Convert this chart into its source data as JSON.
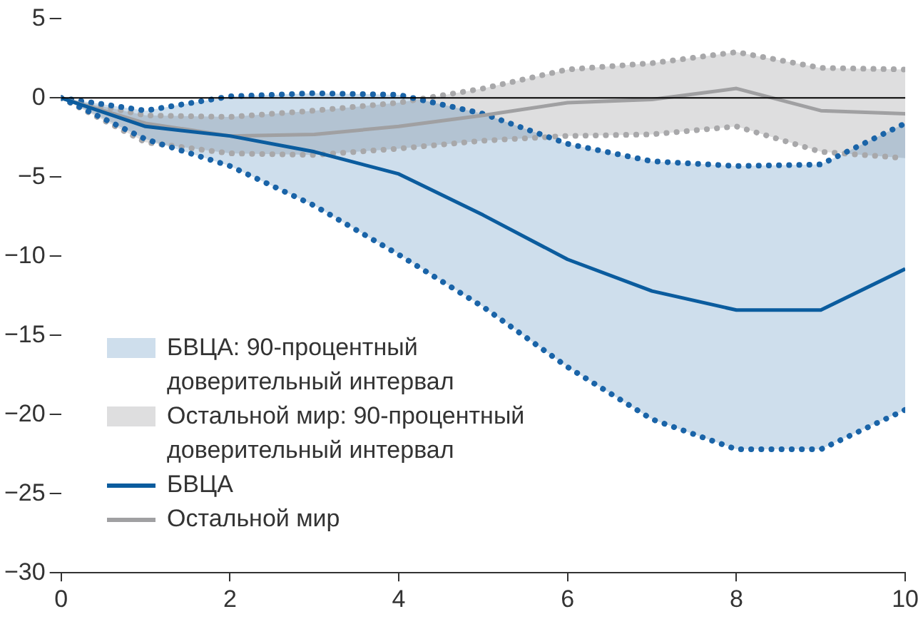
{
  "chart_data": {
    "type": "line",
    "x": [
      0,
      1,
      2,
      3,
      4,
      5,
      6,
      7,
      8,
      9,
      10
    ],
    "series": [
      {
        "name": "БВЦА",
        "color": "#0b5c9e",
        "values": [
          0,
          -1.8,
          -2.4,
          -3.4,
          -4.8,
          -7.4,
          -10.2,
          -12.2,
          -13.4,
          -13.4,
          -10.8
        ],
        "lower": [
          0,
          -2.6,
          -4.3,
          -6.8,
          -9.9,
          -13.2,
          -17.0,
          -20.3,
          -22.2,
          -22.2,
          -19.7
        ],
        "upper": [
          0,
          -0.8,
          0.1,
          0.3,
          0.2,
          -1.0,
          -2.9,
          -4.0,
          -4.3,
          -4.2,
          -1.6
        ]
      },
      {
        "name": "Остальной мир",
        "color": "#a0a0a2",
        "values": [
          0,
          -1.6,
          -2.4,
          -2.3,
          -1.8,
          -1.1,
          -0.3,
          -0.1,
          0.6,
          -0.8,
          -1.0
        ],
        "lower": [
          0,
          -2.8,
          -3.5,
          -3.6,
          -3.2,
          -2.7,
          -2.4,
          -2.3,
          -1.8,
          -3.4,
          -3.8
        ],
        "upper": [
          0,
          -1.1,
          -1.2,
          -0.8,
          -0.3,
          0.6,
          1.8,
          2.2,
          2.9,
          1.9,
          1.8
        ]
      },
      {
        "color": "#1a64a8",
        "line_style": "dotted",
        "values": [
          0,
          -2.6,
          -4.3,
          -6.8,
          -9.9,
          -13.2,
          -17.0,
          -20.3,
          -22.2,
          -22.2,
          -19.7
        ]
      },
      {
        "color": "#1a64a8",
        "line_style": "dotted",
        "values": [
          0,
          -0.8,
          0.1,
          0.3,
          0.2,
          -1.0,
          -2.9,
          -4.0,
          -4.3,
          -4.2,
          -1.6
        ]
      },
      {
        "color": "#a8a8aa",
        "line_style": "dotted",
        "values": [
          0,
          -2.8,
          -3.5,
          -3.6,
          -3.2,
          -2.7,
          -2.4,
          -2.3,
          -1.8,
          -3.4,
          -3.8
        ]
      },
      {
        "color": "#a8a8aa",
        "line_style": "dotted",
        "values": [
          0,
          -1.1,
          -1.2,
          -0.8,
          -0.3,
          0.6,
          1.8,
          2.2,
          2.9,
          1.9,
          1.8
        ]
      }
    ],
    "annotations": [
      "БВЦА: 90-процентный доверительный интервал",
      "Остальной мир: 90-процентный доверительный интервал"
    ],
    "xlim": [
      0,
      10
    ],
    "xticks": [
      0,
      2,
      4,
      6,
      8,
      10
    ],
    "ylim": [
      -30,
      5
    ],
    "yticks": [
      -30,
      -25,
      -20,
      -15,
      -10,
      -5,
      0,
      5
    ],
    "ref_lines": [
      {
        "axis": "y",
        "value": 0,
        "color": "#000000"
      }
    ],
    "grid": false,
    "legend": "bottom left",
    "marker": "none"
  }
}
